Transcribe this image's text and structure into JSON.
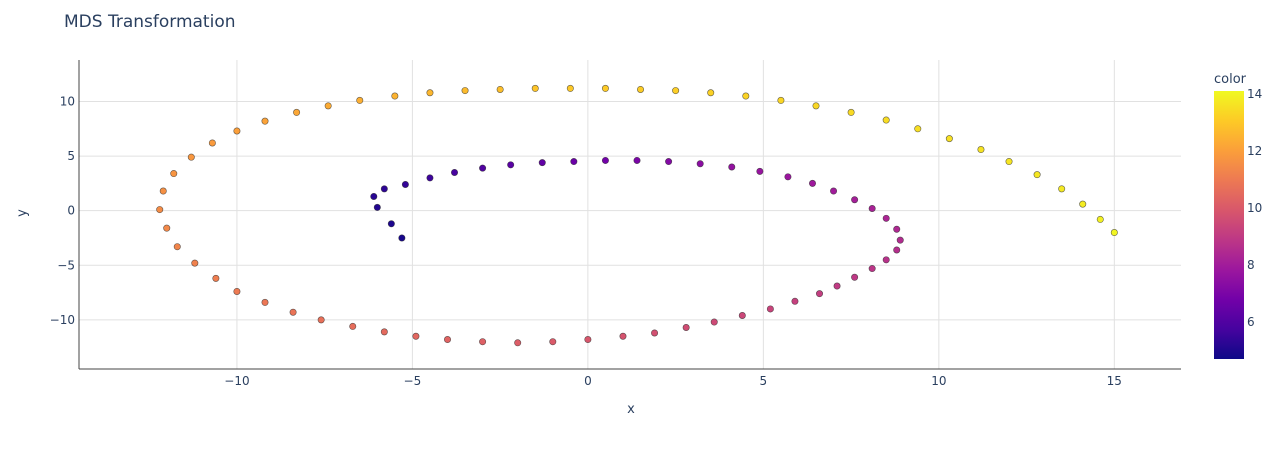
{
  "chart_data": {
    "type": "scatter",
    "title": "MDS Transformation",
    "xlabel": "x",
    "ylabel": "y",
    "xlim": [
      -14.5,
      16.9
    ],
    "ylim": [
      -14.5,
      13.8
    ],
    "x_ticks": [
      -10,
      -5,
      0,
      5,
      10,
      15
    ],
    "x_tick_labels": [
      "−10",
      "−5",
      "0",
      "5",
      "10",
      "15"
    ],
    "y_ticks": [
      -10,
      -5,
      0,
      5,
      10
    ],
    "y_tick_labels": [
      "−10",
      "−5",
      "0",
      "5",
      "10"
    ],
    "grid": true,
    "legend_placement": "right",
    "colorbar": {
      "title": "color",
      "range": [
        4.7,
        14.1
      ],
      "ticks": [
        6,
        8,
        10,
        12,
        14
      ],
      "tick_labels": [
        "6",
        "8",
        "10",
        "12",
        "14"
      ],
      "colormap": "plasma",
      "colors": [
        "#0d0887",
        "#46039f",
        "#7201a8",
        "#9c179e",
        "#bd3786",
        "#d8576b",
        "#ed7953",
        "#fb9f3a",
        "#fdca26",
        "#f0f921"
      ]
    },
    "series": [
      {
        "description": "spiral arm points colored by parameter value",
        "x": [
          -5.3,
          -5.6,
          -6.0,
          -6.1,
          -5.8,
          -5.2,
          -4.5,
          -3.8,
          -3.0,
          -2.2,
          -1.3,
          -0.4,
          0.5,
          1.4,
          2.3,
          3.2,
          4.1,
          4.9,
          5.7,
          6.4,
          7.0,
          7.6,
          8.1,
          8.5,
          8.8,
          8.9,
          8.8,
          8.5,
          8.1,
          7.6,
          7.1,
          6.6,
          5.9,
          5.2,
          4.4,
          3.6,
          2.8,
          1.9,
          1.0,
          0.0,
          -1.0,
          -2.0,
          -3.0,
          -4.0,
          -4.9,
          -5.8,
          -6.7,
          -7.6,
          -8.4,
          -9.2,
          -10.0,
          -10.6,
          -11.2,
          -11.7,
          -12.0,
          -12.2,
          -12.1,
          -11.8,
          -11.3,
          -10.7,
          -10.0,
          -9.2,
          -8.3,
          -7.4,
          -6.5,
          -5.5,
          -4.5,
          -3.5,
          -2.5,
          -1.5,
          -0.5,
          0.5,
          1.5,
          2.5,
          3.5,
          4.5,
          5.5,
          6.5,
          7.5,
          8.5,
          9.4,
          10.3,
          11.2,
          12.0,
          12.8,
          13.5,
          14.1,
          14.6,
          15.0
        ],
        "y": [
          -2.5,
          -1.2,
          0.3,
          1.3,
          2.0,
          2.4,
          3.0,
          3.5,
          3.9,
          4.2,
          4.4,
          4.5,
          4.6,
          4.6,
          4.5,
          4.3,
          4.0,
          3.6,
          3.1,
          2.5,
          1.8,
          1.0,
          0.2,
          -0.7,
          -1.7,
          -2.7,
          -3.6,
          -4.5,
          -5.3,
          -6.1,
          -6.9,
          -7.6,
          -8.3,
          -9.0,
          -9.6,
          -10.2,
          -10.7,
          -11.2,
          -11.5,
          -11.8,
          -12.0,
          -12.1,
          -12.0,
          -11.8,
          -11.5,
          -11.1,
          -10.6,
          -10.0,
          -9.3,
          -8.4,
          -7.4,
          -6.2,
          -4.8,
          -3.3,
          -1.6,
          0.1,
          1.8,
          3.4,
          4.9,
          6.2,
          7.3,
          8.2,
          9.0,
          9.6,
          10.1,
          10.5,
          10.8,
          11.0,
          11.1,
          11.2,
          11.2,
          11.2,
          11.1,
          11.0,
          10.8,
          10.5,
          10.1,
          9.6,
          9.0,
          8.3,
          7.5,
          6.6,
          5.6,
          4.5,
          3.3,
          2.0,
          0.6,
          -0.8,
          -2.0
        ],
        "color": [
          4.9,
          5.0,
          5.1,
          5.2,
          5.3,
          5.4,
          5.6,
          5.8,
          6.0,
          6.2,
          6.4,
          6.6,
          6.8,
          7.0,
          7.2,
          7.4,
          7.6,
          7.7,
          7.8,
          7.9,
          8.0,
          8.1,
          8.2,
          8.3,
          8.4,
          8.5,
          8.6,
          8.7,
          8.8,
          8.9,
          9.0,
          9.1,
          9.2,
          9.3,
          9.4,
          9.5,
          9.6,
          9.7,
          9.8,
          9.9,
          10.0,
          10.1,
          10.2,
          10.3,
          10.4,
          10.5,
          10.6,
          10.7,
          10.8,
          10.9,
          11.0,
          11.1,
          11.2,
          11.3,
          11.4,
          11.5,
          11.6,
          11.7,
          11.8,
          11.9,
          12.0,
          12.1,
          12.2,
          12.3,
          12.4,
          12.5,
          12.6,
          12.7,
          12.8,
          12.9,
          13.0,
          13.05,
          13.1,
          13.15,
          13.2,
          13.25,
          13.3,
          13.35,
          13.4,
          13.45,
          13.5,
          13.55,
          13.6,
          13.65,
          13.7,
          13.75,
          13.8,
          13.9,
          14.0
        ]
      }
    ]
  }
}
